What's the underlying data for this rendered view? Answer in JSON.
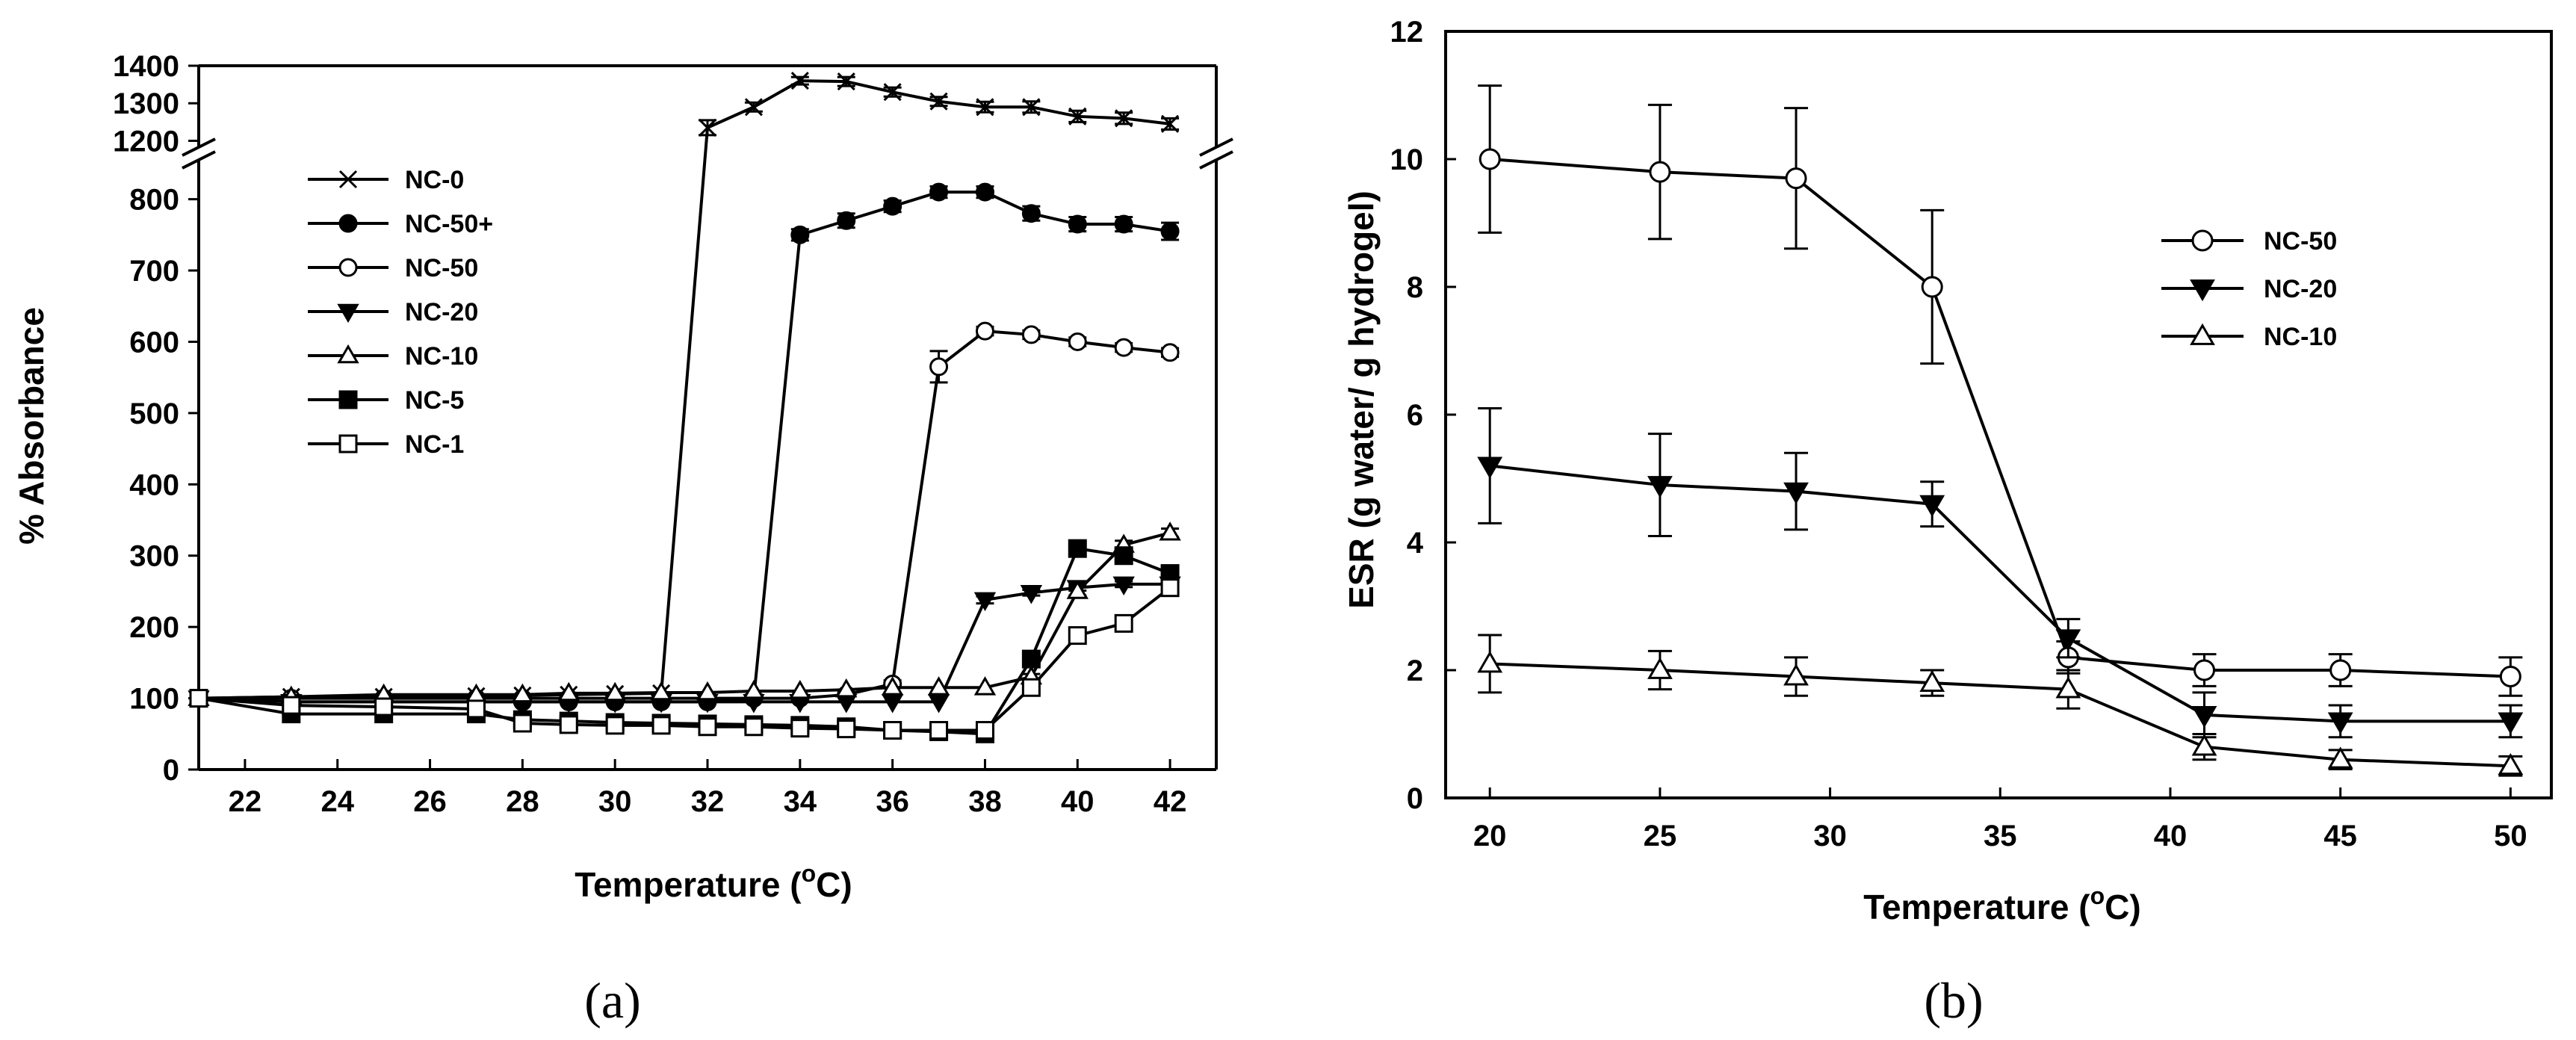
{
  "chart_data": [
    {
      "type": "line",
      "panel_label": "(a)",
      "xlabel": "Temperature (",
      "xlabel_sup": "o",
      "xlabel_end": "C)",
      "ylabel": "% Absorbance",
      "x_ticks": [
        22,
        24,
        26,
        28,
        30,
        32,
        34,
        36,
        38,
        40,
        42
      ],
      "xlim": [
        21,
        43
      ],
      "y_ticks_lower": [
        0,
        100,
        200,
        300,
        400,
        500,
        600,
        700,
        800
      ],
      "ylim_lower": [
        0,
        830
      ],
      "y_ticks_upper": [
        1200,
        1300,
        1400
      ],
      "ylim_upper": [
        1185,
        1400
      ],
      "axis_break": true,
      "legend_position": "upper-left",
      "series": [
        {
          "name": "NC-0",
          "marker": "x",
          "x": [
            21,
            23,
            25,
            27,
            28,
            29,
            30,
            31,
            32,
            33,
            34,
            35,
            36,
            37,
            38,
            39,
            40,
            41,
            42
          ],
          "y": [
            100,
            102,
            102,
            103,
            104,
            105,
            106,
            107,
            1235,
            1290,
            1360,
            1358,
            1330,
            1305,
            1290,
            1290,
            1265,
            1260,
            1245
          ],
          "err": [
            0,
            2,
            2,
            2,
            2,
            2,
            2,
            2,
            20,
            12,
            10,
            12,
            12,
            12,
            14,
            15,
            15,
            15,
            15
          ]
        },
        {
          "name": "NC-50+",
          "marker": "filled-circle",
          "x": [
            21,
            23,
            25,
            27,
            28,
            29,
            30,
            31,
            32,
            33,
            34,
            35,
            36,
            37,
            38,
            39,
            40,
            41,
            42
          ],
          "y": [
            100,
            95,
            95,
            95,
            95,
            95,
            95,
            95,
            95,
            100,
            750,
            770,
            790,
            810,
            810,
            780,
            765,
            765,
            755
          ],
          "err": [
            0,
            3,
            3,
            3,
            3,
            3,
            3,
            3,
            3,
            5,
            8,
            10,
            8,
            8,
            8,
            10,
            10,
            10,
            12
          ]
        },
        {
          "name": "NC-50",
          "marker": "open-circle",
          "x": [
            21,
            23,
            25,
            27,
            28,
            29,
            30,
            31,
            32,
            33,
            34,
            35,
            36,
            37,
            38,
            39,
            40,
            41,
            42
          ],
          "y": [
            100,
            100,
            100,
            100,
            100,
            100,
            100,
            100,
            100,
            100,
            100,
            105,
            120,
            565,
            615,
            610,
            600,
            592,
            585
          ],
          "err": [
            0,
            2,
            2,
            2,
            2,
            2,
            2,
            2,
            2,
            2,
            2,
            3,
            5,
            22,
            6,
            6,
            6,
            6,
            6
          ]
        },
        {
          "name": "NC-20",
          "marker": "filled-triangle-down",
          "x": [
            21,
            23,
            25,
            27,
            28,
            29,
            30,
            31,
            32,
            33,
            34,
            35,
            36,
            37,
            38,
            39,
            40,
            41,
            42
          ],
          "y": [
            100,
            95,
            95,
            95,
            95,
            95,
            95,
            95,
            95,
            95,
            95,
            95,
            95,
            95,
            238,
            248,
            255,
            260,
            260
          ],
          "err": [
            0,
            2,
            2,
            2,
            2,
            2,
            2,
            2,
            2,
            2,
            2,
            2,
            2,
            2,
            5,
            4,
            4,
            4,
            4
          ]
        },
        {
          "name": "NC-10",
          "marker": "open-triangle-up",
          "x": [
            21,
            23,
            25,
            27,
            28,
            29,
            30,
            31,
            32,
            33,
            34,
            35,
            36,
            37,
            38,
            39,
            40,
            41,
            42
          ],
          "y": [
            100,
            102,
            105,
            105,
            105,
            107,
            107,
            108,
            108,
            110,
            110,
            112,
            115,
            115,
            115,
            130,
            250,
            315,
            332
          ],
          "err": [
            0,
            2,
            2,
            2,
            2,
            2,
            2,
            2,
            2,
            2,
            2,
            2,
            2,
            2,
            2,
            4,
            6,
            6,
            6
          ]
        },
        {
          "name": "NC-5",
          "marker": "filled-square",
          "x": [
            21,
            23,
            25,
            27,
            28,
            29,
            30,
            31,
            32,
            33,
            34,
            35,
            36,
            37,
            38,
            39,
            40,
            41,
            42
          ],
          "y": [
            100,
            78,
            78,
            78,
            70,
            68,
            66,
            65,
            64,
            63,
            62,
            60,
            55,
            53,
            50,
            155,
            310,
            300,
            275
          ],
          "err": [
            0,
            3,
            3,
            3,
            3,
            3,
            3,
            3,
            3,
            3,
            3,
            3,
            3,
            3,
            8,
            10,
            8,
            6,
            6
          ]
        },
        {
          "name": "NC-1",
          "marker": "open-square",
          "x": [
            21,
            23,
            25,
            27,
            28,
            29,
            30,
            31,
            32,
            33,
            34,
            35,
            36,
            37,
            38,
            39,
            40,
            41,
            42
          ],
          "y": [
            100,
            90,
            88,
            85,
            65,
            63,
            62,
            62,
            60,
            60,
            58,
            57,
            55,
            55,
            55,
            115,
            188,
            205,
            255
          ],
          "err": [
            0,
            3,
            3,
            3,
            3,
            3,
            3,
            3,
            3,
            3,
            3,
            3,
            3,
            3,
            3,
            5,
            6,
            6,
            6
          ]
        }
      ]
    },
    {
      "type": "line",
      "panel_label": "(b)",
      "xlabel": "Temperature (",
      "xlabel_sup": "o",
      "xlabel_end": "C)",
      "ylabel": "ESR (g water/ g hydrogel)",
      "x_ticks": [
        20,
        25,
        30,
        35,
        40,
        45,
        50
      ],
      "xlim": [
        18.7,
        51.2
      ],
      "y_ticks": [
        0,
        2,
        4,
        6,
        8,
        10,
        12
      ],
      "ylim": [
        0,
        12
      ],
      "legend_position": "upper-right",
      "series": [
        {
          "name": "NC-50",
          "marker": "open-circle",
          "x": [
            20,
            25,
            29,
            33,
            37,
            41,
            45,
            50
          ],
          "y": [
            10.0,
            9.8,
            9.7,
            8.0,
            2.2,
            2.0,
            2.0,
            1.9
          ],
          "err": [
            1.15,
            1.05,
            1.1,
            1.2,
            0.25,
            0.25,
            0.25,
            0.3
          ]
        },
        {
          "name": "NC-20",
          "marker": "filled-triangle-down",
          "x": [
            20,
            25,
            29,
            33,
            37,
            41,
            45,
            50
          ],
          "y": [
            5.2,
            4.9,
            4.8,
            4.6,
            2.5,
            1.3,
            1.2,
            1.2
          ],
          "err": [
            0.9,
            0.8,
            0.6,
            0.35,
            0.3,
            0.35,
            0.25,
            0.25
          ]
        },
        {
          "name": "NC-10",
          "marker": "open-triangle-up",
          "x": [
            20,
            25,
            29,
            33,
            37,
            41,
            45,
            50
          ],
          "y": [
            2.1,
            2.0,
            1.9,
            1.8,
            1.7,
            0.8,
            0.6,
            0.5
          ],
          "err": [
            0.45,
            0.3,
            0.3,
            0.2,
            0.3,
            0.2,
            0.15,
            0.15
          ]
        }
      ]
    }
  ]
}
